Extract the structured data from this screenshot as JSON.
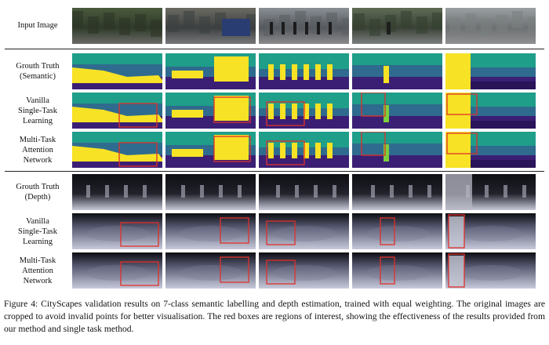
{
  "rows": [
    {
      "id": "input",
      "lines": [
        "Input Image"
      ]
    },
    {
      "id": "gt-semantic",
      "lines": [
        "Grouth Truth",
        "(Semantic)"
      ]
    },
    {
      "id": "vanilla-semantic",
      "lines": [
        "Vanilla",
        "Single-Task",
        "Learning"
      ]
    },
    {
      "id": "mtan-semantic",
      "lines": [
        "Multi-Task",
        "Attention",
        "Network"
      ]
    },
    {
      "id": "gt-depth",
      "lines": [
        "Grouth Truth",
        "(Depth)"
      ]
    },
    {
      "id": "vanilla-depth",
      "lines": [
        "Vanilla",
        "Single-Task",
        "Learning"
      ]
    },
    {
      "id": "mtan-depth",
      "lines": [
        "Multi-Task",
        "Attention",
        "Network"
      ]
    }
  ],
  "caption": "Figure 4: CityScapes validation results on 7-class semantic labelling and depth estimation, trained with equal weighting. The original images are cropped to avoid invalid points for better visualisation. The red boxes are regions of interest, showing the effectiveness of the results provided from our method and single task method.",
  "colors": {
    "semantic_road": "#3b1f74",
    "semantic_sky": "#1f9e89",
    "semantic_mid": "#2f6b8e",
    "semantic_object": "#f7e225",
    "depth_far": "#0d0d12",
    "depth_near": "#c8cadb",
    "roi_box": "#e0302a"
  }
}
